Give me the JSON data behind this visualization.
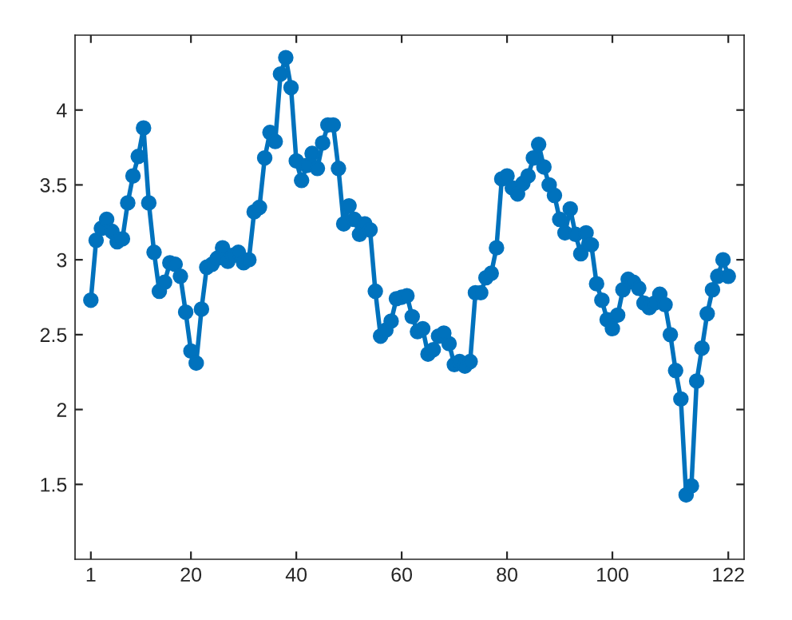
{
  "chart_data": {
    "type": "line",
    "marker": "circle",
    "line_style": "solid",
    "grid": false,
    "legend": false,
    "x": [
      1,
      2,
      3,
      4,
      5,
      6,
      7,
      8,
      9,
      10,
      11,
      12,
      13,
      14,
      15,
      16,
      17,
      18,
      19,
      20,
      21,
      22,
      23,
      24,
      25,
      26,
      27,
      28,
      29,
      30,
      31,
      32,
      33,
      34,
      35,
      36,
      37,
      38,
      39,
      40,
      41,
      42,
      43,
      44,
      45,
      46,
      47,
      48,
      49,
      50,
      51,
      52,
      53,
      54,
      55,
      56,
      57,
      58,
      59,
      60,
      61,
      62,
      63,
      64,
      65,
      66,
      67,
      68,
      69,
      70,
      71,
      72,
      73,
      74,
      75,
      76,
      77,
      78,
      79,
      80,
      81,
      82,
      83,
      84,
      85,
      86,
      87,
      88,
      89,
      90,
      91,
      92,
      93,
      94,
      95,
      96,
      97,
      98,
      99,
      100,
      101,
      102,
      103,
      104,
      105,
      106,
      107,
      108,
      109,
      110,
      111,
      112,
      113,
      114,
      115,
      116,
      117,
      118,
      119,
      120,
      121,
      122
    ],
    "series": [
      {
        "color": "#0072bd",
        "values": [
          2.73,
          3.13,
          3.21,
          3.27,
          3.19,
          3.12,
          3.14,
          3.38,
          3.56,
          3.69,
          3.88,
          3.38,
          3.05,
          2.79,
          2.85,
          2.98,
          2.97,
          2.89,
          2.65,
          2.39,
          2.31,
          2.67,
          2.95,
          2.97,
          3.01,
          3.08,
          2.99,
          3.03,
          3.05,
          2.98,
          3.0,
          3.32,
          3.35,
          3.68,
          3.85,
          3.79,
          4.24,
          4.35,
          4.15,
          3.66,
          3.53,
          3.63,
          3.71,
          3.61,
          3.78,
          3.9,
          3.9,
          3.61,
          3.24,
          3.36,
          3.27,
          3.17,
          3.24,
          3.2,
          2.79,
          2.49,
          2.53,
          2.59,
          2.74,
          2.75,
          2.76,
          2.62,
          2.52,
          2.54,
          2.37,
          2.4,
          2.49,
          2.51,
          2.44,
          2.3,
          2.32,
          2.29,
          2.32,
          2.78,
          2.78,
          2.88,
          2.91,
          3.08,
          3.54,
          3.56,
          3.48,
          3.44,
          3.51,
          3.56,
          3.68,
          3.77,
          3.62,
          3.5,
          3.43,
          3.27,
          3.18,
          3.34,
          3.17,
          3.04,
          3.18,
          3.1,
          2.84,
          2.73,
          2.6,
          2.54,
          2.63,
          2.8,
          2.87,
          2.85,
          2.81,
          2.71,
          2.68,
          2.71,
          2.77,
          2.7,
          2.5,
          2.26,
          2.07,
          1.43,
          1.49,
          2.19,
          2.41,
          2.64,
          2.8,
          2.89,
          3.0,
          2.89
        ]
      }
    ],
    "xlim": [
      -2,
      125
    ],
    "ylim": [
      1,
      4.5
    ],
    "xticks": [
      1,
      20,
      40,
      60,
      80,
      100,
      122
    ],
    "yticks": [
      1.5,
      2,
      2.5,
      3,
      3.5,
      4
    ]
  }
}
